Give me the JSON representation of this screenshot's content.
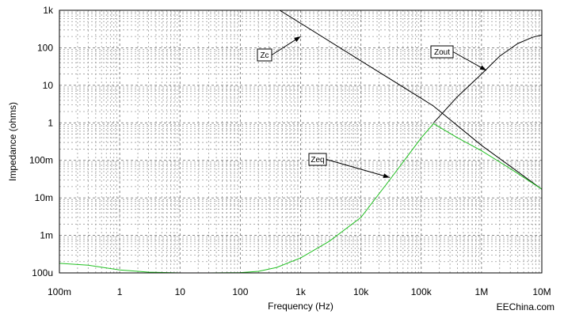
{
  "chart_data": {
    "type": "line",
    "title": "",
    "xlabel": "Frequency (Hz)",
    "ylabel": "Impedance (ohms)",
    "x_scale": "log",
    "y_scale": "log",
    "xlim": [
      0.1,
      10000000
    ],
    "ylim": [
      0.0001,
      1000
    ],
    "grid": true,
    "x_ticks": [
      {
        "value": 0.1,
        "label": "100m"
      },
      {
        "value": 1,
        "label": "1"
      },
      {
        "value": 10,
        "label": "10"
      },
      {
        "value": 100,
        "label": "100"
      },
      {
        "value": 1000,
        "label": "1k"
      },
      {
        "value": 10000,
        "label": "10k"
      },
      {
        "value": 100000,
        "label": "100k"
      },
      {
        "value": 1000000,
        "label": "1M"
      },
      {
        "value": 10000000,
        "label": "10M"
      }
    ],
    "y_ticks": [
      {
        "value": 1000,
        "label": "1k"
      },
      {
        "value": 100,
        "label": "100"
      },
      {
        "value": 10,
        "label": "10"
      },
      {
        "value": 1,
        "label": "1"
      },
      {
        "value": 0.1,
        "label": "100m"
      },
      {
        "value": 0.01,
        "label": "10m"
      },
      {
        "value": 0.001,
        "label": "1m"
      },
      {
        "value": 0.0001,
        "label": "100u"
      }
    ],
    "series": [
      {
        "name": "Zc",
        "color": "#000000",
        "x": [
          450,
          1000,
          10000,
          100000,
          160000,
          1000000,
          10000000
        ],
        "y": [
          1000,
          450,
          45,
          4.5,
          2.8,
          0.25,
          0.017
        ]
      },
      {
        "name": "Zout",
        "color": "#000000",
        "x": [
          160000,
          400000,
          1000000,
          2000000,
          4000000,
          7000000,
          10000000
        ],
        "y": [
          1.0,
          5.0,
          20,
          60,
          130,
          190,
          220
        ]
      },
      {
        "name": "Zeq",
        "color": "#22c022",
        "x": [
          0.1,
          0.3,
          1,
          3,
          10,
          30,
          100,
          200,
          400,
          1000,
          3000,
          10000,
          30000,
          100000,
          160000,
          400000,
          1000000,
          3000000,
          10000000
        ],
        "y": [
          0.00018,
          0.00016,
          0.00012,
          0.000105,
          0.0001,
          0.0001,
          0.000102,
          0.00011,
          0.00014,
          0.00025,
          0.0007,
          0.003,
          0.03,
          0.4,
          0.95,
          0.4,
          0.18,
          0.06,
          0.017
        ]
      }
    ],
    "annotations": [
      {
        "label": "Zc",
        "target_x": 1000,
        "target_y": 200
      },
      {
        "label": "Zout",
        "target_x": 1200000,
        "target_y": 25
      },
      {
        "label": "Zeq",
        "target_x": 30000,
        "target_y": 0.035
      }
    ]
  },
  "watermark": "EEChina.com"
}
